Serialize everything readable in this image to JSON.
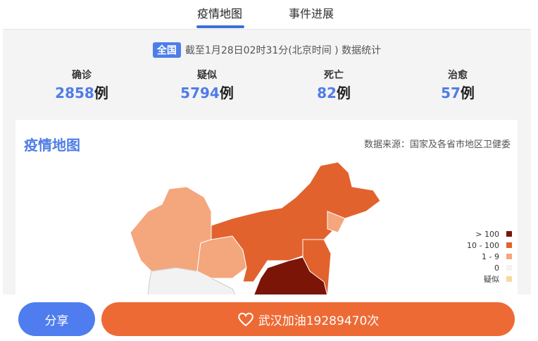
{
  "tabs": [
    "疫情地图",
    "事件进展"
  ],
  "header": {
    "badge": "全国",
    "timestamp": "截至1月28日02时31分(北京时间 ) 数据统计"
  },
  "stats": [
    {
      "label": "确诊",
      "value": "2858",
      "unit": "例"
    },
    {
      "label": "疑似",
      "value": "5794",
      "unit": "例"
    },
    {
      "label": "死亡",
      "value": "82",
      "unit": "例"
    },
    {
      "label": "治愈",
      "value": "57",
      "unit": "例"
    }
  ],
  "map": {
    "title": "疫情地图",
    "source": "数据来源：国家及各省市地区卫健委",
    "legend": [
      {
        "label": "> 100",
        "color": "#7a1508"
      },
      {
        "label": "10 - 100",
        "color": "#e2622d"
      },
      {
        "label": "1 - 9",
        "color": "#f4a67d"
      },
      {
        "label": "0",
        "color": "#f2f2f2"
      },
      {
        "label": "疑似",
        "color": "#f7d9a0"
      }
    ]
  },
  "footer": {
    "share": "分享",
    "cheer": "武汉加油19289470次"
  }
}
